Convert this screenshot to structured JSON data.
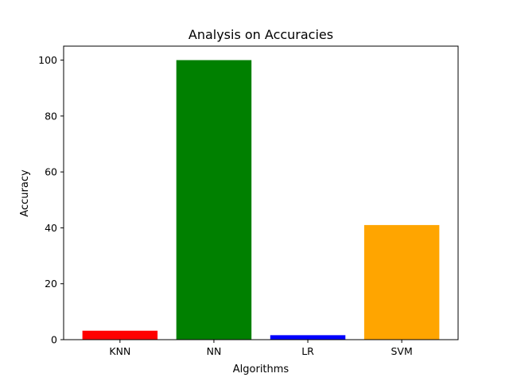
{
  "chart_data": {
    "type": "bar",
    "title": "Analysis on Accuracies",
    "xlabel": "Algorithms",
    "ylabel": "Accuracy",
    "categories": [
      "KNN",
      "NN",
      "LR",
      "SVM"
    ],
    "values": [
      3.2,
      100.0,
      1.6,
      41.0
    ],
    "colors": [
      "#ff0000",
      "#008000",
      "#0000ff",
      "#ffa500"
    ],
    "ylim": [
      0,
      105
    ],
    "yticks": [
      0,
      20,
      40,
      60,
      80,
      100
    ],
    "grid": false,
    "legend": "none"
  }
}
